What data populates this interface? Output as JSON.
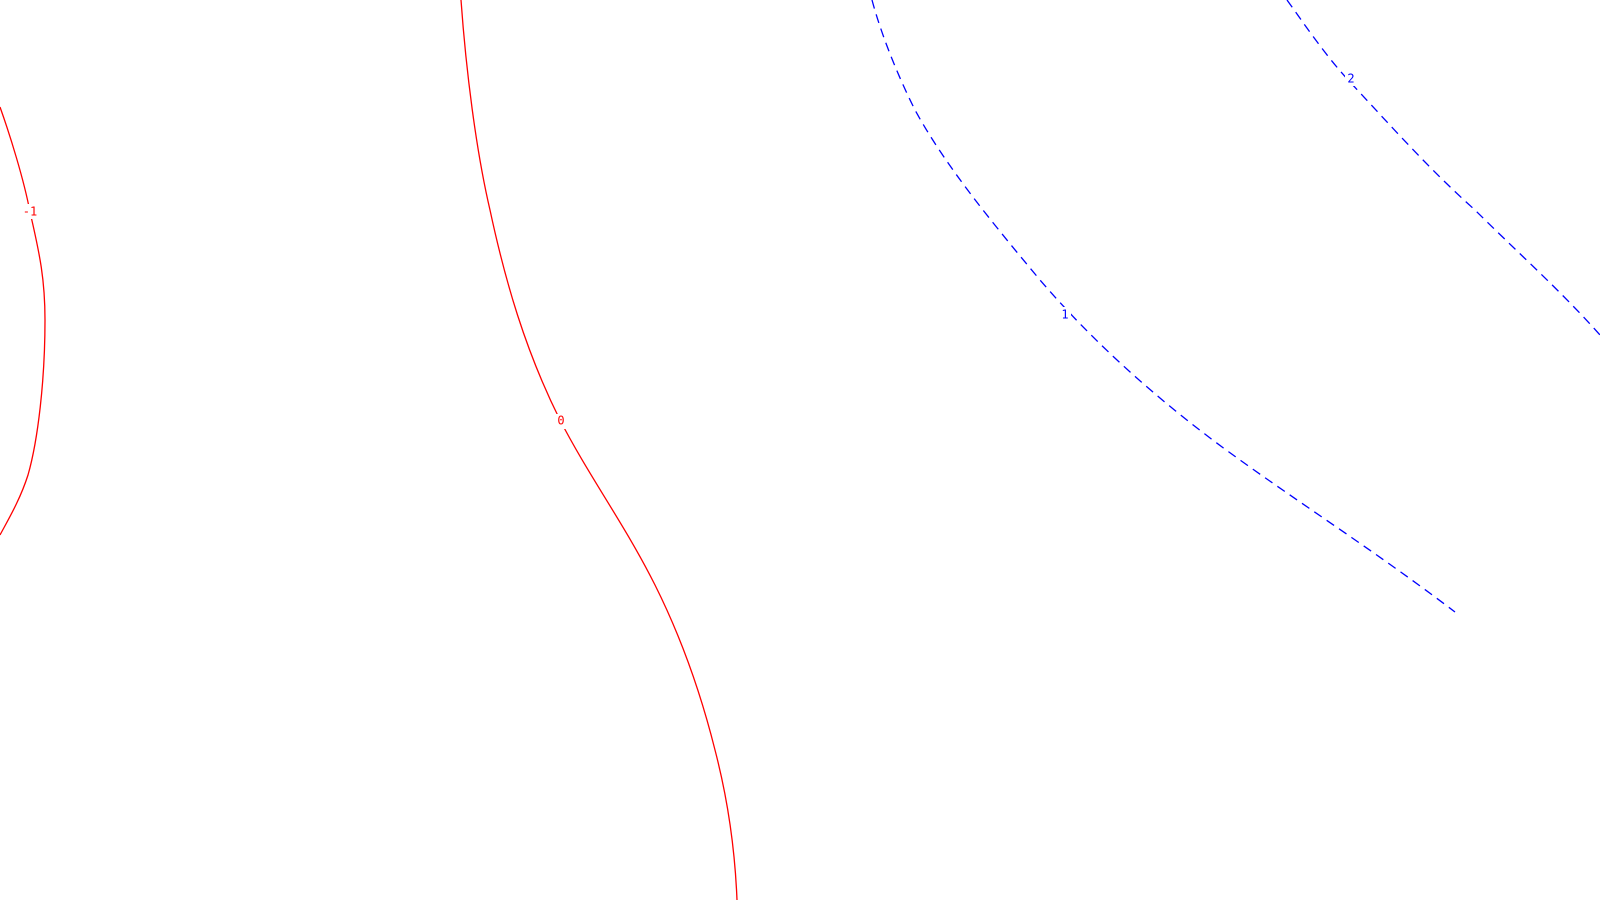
{
  "chart_data": {
    "type": "contour",
    "title": "",
    "xlabel": "",
    "ylabel": "",
    "grid": false,
    "legend": "none",
    "levels": [
      {
        "level": "-1",
        "color": "#ff0000",
        "style": "solid"
      },
      {
        "level": "0",
        "color": "#ff0000",
        "style": "solid"
      },
      {
        "level": "1",
        "color": "#0000ff",
        "style": "dashed"
      },
      {
        "level": "2",
        "color": "#0000ff",
        "style": "dashed"
      }
    ]
  }
}
